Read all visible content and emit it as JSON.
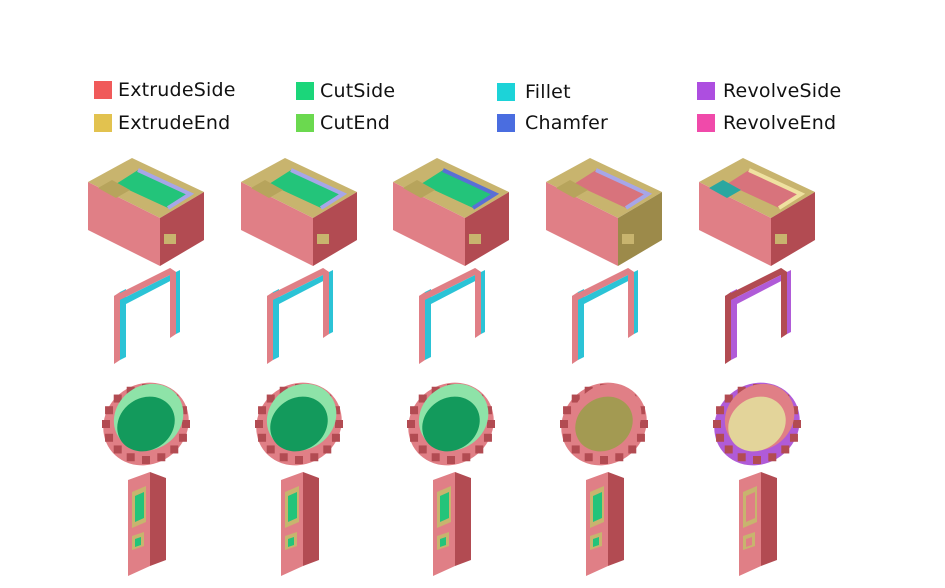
{
  "legend": [
    {
      "label": "ExtrudeSide",
      "color": "#f05a5a"
    },
    {
      "label": "ExtrudeEnd",
      "color": "#e2c24f"
    },
    {
      "label": "CutSide",
      "color": "#1bd67a"
    },
    {
      "label": "CutEnd",
      "color": "#6bd94f"
    },
    {
      "label": "Fillet",
      "color": "#1cd3d8"
    },
    {
      "label": "Chamfer",
      "color": "#4a6de0"
    },
    {
      "label": "RevolveSide",
      "color": "#ad4ee0"
    },
    {
      "label": "RevolveEnd",
      "color": "#f04aaa"
    }
  ],
  "colors": {
    "body": "#e07f86",
    "body_dark": "#b24b52",
    "end": "#c8b46e",
    "end_dark": "#9c8a4a",
    "cut": "#23c47a",
    "cut_dark": "#139a5c",
    "cut_light": "#8ee3a8",
    "fillet": "#2bc3d6",
    "chamfer": "#5a6fd6",
    "revolve": "#b05bd8",
    "revolve_light": "#e3d49a"
  },
  "models": [
    "box",
    "frame",
    "gear",
    "handle"
  ],
  "columns": [
    {
      "variant": "a"
    },
    {
      "variant": "b"
    },
    {
      "variant": "c"
    },
    {
      "variant": "d"
    },
    {
      "variant": "e"
    }
  ]
}
